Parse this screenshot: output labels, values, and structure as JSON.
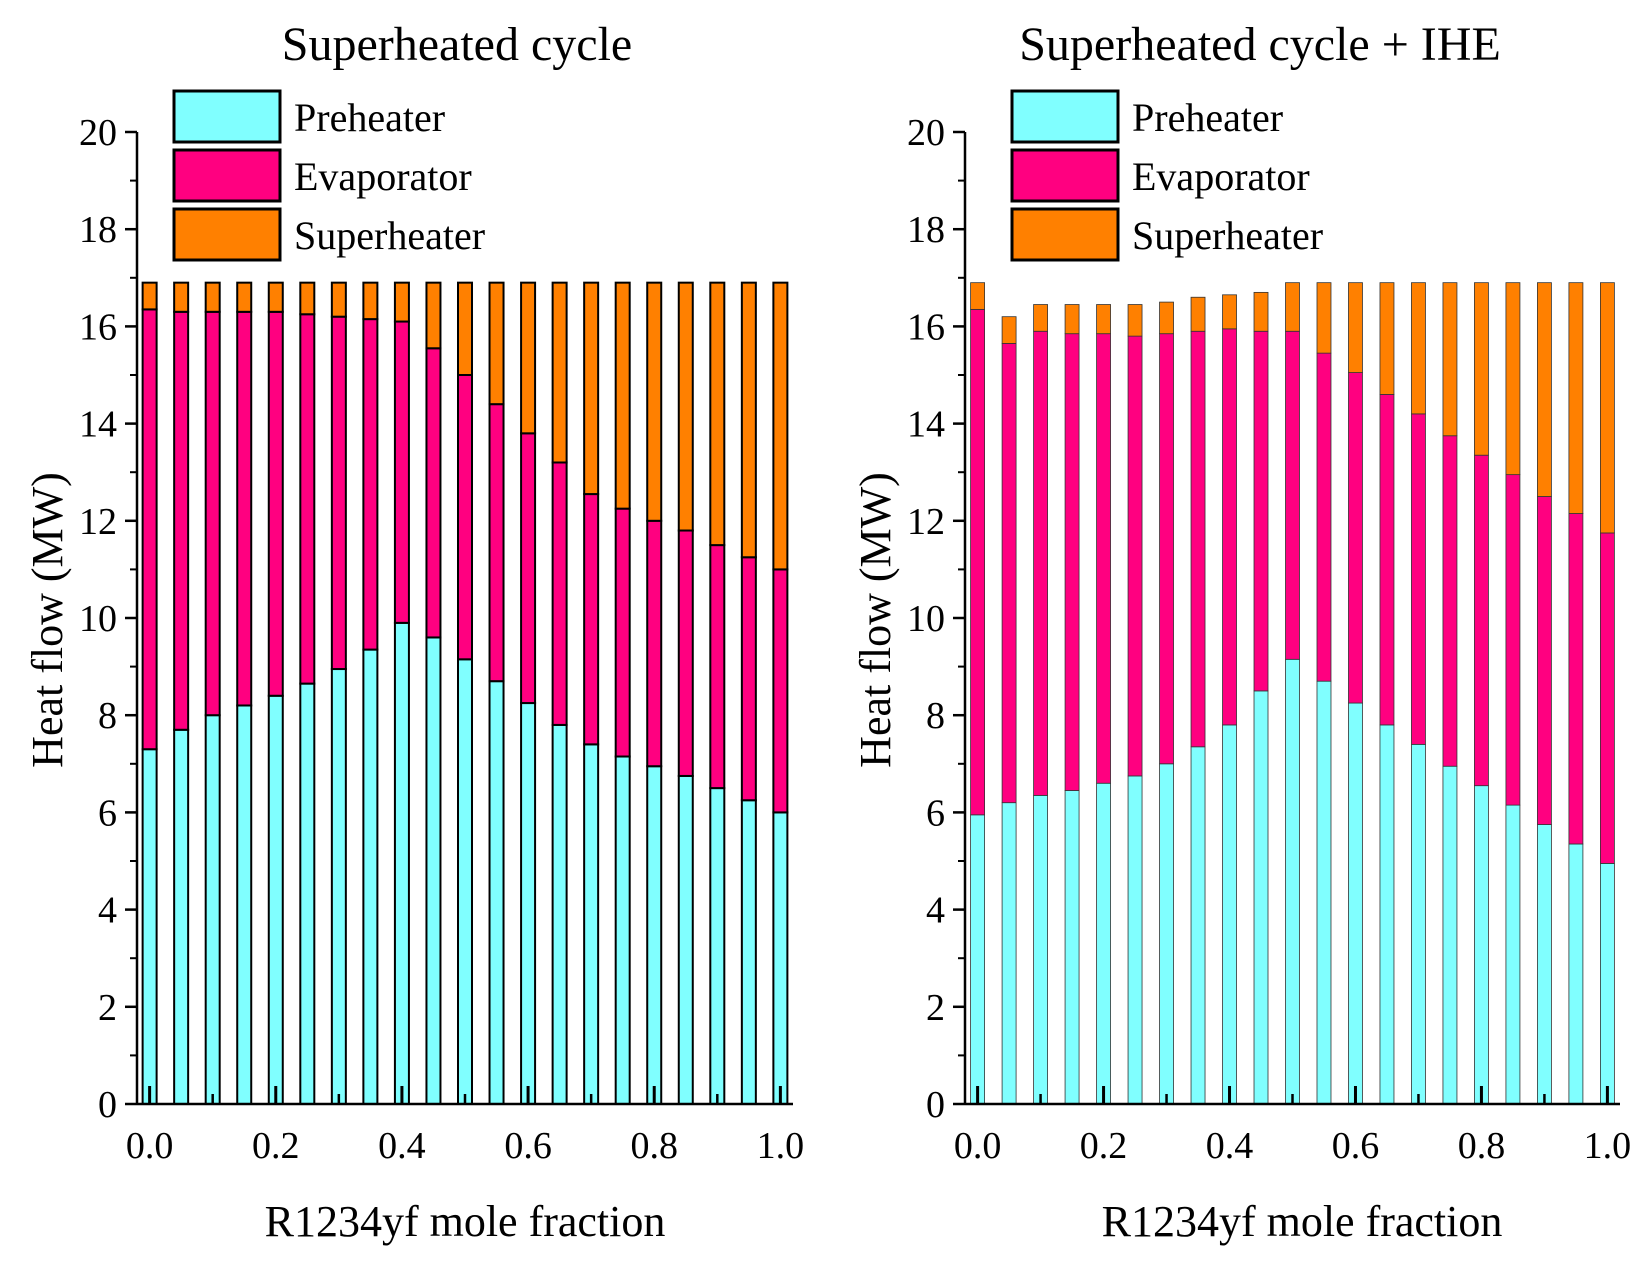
{
  "figure": {
    "description_title": ""
  },
  "chart_data": [
    {
      "type": "bar",
      "stacked": true,
      "title": "Superheated cycle",
      "xlabel": "R1234yf mole fraction",
      "ylabel": "Heat flow (MW)",
      "ylim": [
        0,
        20
      ],
      "xlim": [
        -0.02,
        1.02
      ],
      "xticks": [
        "0.0",
        "0.2",
        "0.4",
        "0.6",
        "0.8",
        "1.0"
      ],
      "yticks": [
        "0",
        "2",
        "4",
        "6",
        "8",
        "10",
        "12",
        "14",
        "16",
        "18",
        "20"
      ],
      "legend_position": "top-left",
      "bar_outline": true,
      "x": [
        0.0,
        0.05,
        0.1,
        0.15,
        0.2,
        0.25,
        0.3,
        0.35,
        0.4,
        0.45,
        0.5,
        0.55,
        0.6,
        0.65,
        0.7,
        0.75,
        0.8,
        0.85,
        0.9,
        0.95,
        1.0
      ],
      "series": [
        {
          "name": "Preheater",
          "color": "#80ffff",
          "values": [
            7.3,
            7.7,
            8.0,
            8.2,
            8.4,
            8.65,
            8.95,
            9.35,
            9.9,
            9.6,
            9.15,
            8.7,
            8.25,
            7.8,
            7.4,
            7.15,
            6.95,
            6.75,
            6.5,
            6.25,
            6.0
          ]
        },
        {
          "name": "Evaporator",
          "color": "#ff0080",
          "values": [
            9.05,
            8.6,
            8.3,
            8.1,
            7.9,
            7.6,
            7.25,
            6.8,
            6.2,
            5.95,
            5.85,
            5.7,
            5.55,
            5.4,
            5.15,
            5.1,
            5.05,
            5.05,
            5.0,
            5.0,
            5.0
          ]
        },
        {
          "name": "Superheater",
          "color": "#ff8000",
          "values": [
            0.55,
            0.6,
            0.6,
            0.6,
            0.6,
            0.65,
            0.7,
            0.75,
            0.8,
            1.35,
            1.9,
            2.5,
            3.1,
            3.7,
            4.35,
            4.65,
            4.9,
            5.1,
            5.4,
            5.65,
            5.9
          ]
        }
      ]
    },
    {
      "type": "bar",
      "stacked": true,
      "title": "Superheated cycle + IHE",
      "xlabel": "R1234yf mole fraction",
      "ylabel": "Heat flow (MW)",
      "ylim": [
        0,
        20
      ],
      "xlim": [
        -0.02,
        1.02
      ],
      "xticks": [
        "0.0",
        "0.2",
        "0.4",
        "0.6",
        "0.8",
        "1.0"
      ],
      "yticks": [
        "0",
        "2",
        "4",
        "6",
        "8",
        "10",
        "12",
        "14",
        "16",
        "18",
        "20"
      ],
      "legend_position": "top-left",
      "bar_outline": false,
      "x": [
        0.0,
        0.05,
        0.1,
        0.15,
        0.2,
        0.25,
        0.3,
        0.35,
        0.4,
        0.45,
        0.5,
        0.55,
        0.6,
        0.65,
        0.7,
        0.75,
        0.8,
        0.85,
        0.9,
        0.95,
        1.0
      ],
      "series": [
        {
          "name": "Preheater",
          "color": "#80ffff",
          "values": [
            5.95,
            6.2,
            6.35,
            6.45,
            6.6,
            6.75,
            7.0,
            7.35,
            7.8,
            8.5,
            9.15,
            8.7,
            8.25,
            7.8,
            7.4,
            6.95,
            6.55,
            6.15,
            5.75,
            5.35,
            4.95
          ]
        },
        {
          "name": "Evaporator",
          "color": "#ff0080",
          "values": [
            10.4,
            9.45,
            9.55,
            9.4,
            9.25,
            9.05,
            8.85,
            8.55,
            8.15,
            7.4,
            6.75,
            6.75,
            6.8,
            6.8,
            6.8,
            6.8,
            6.8,
            6.8,
            6.75,
            6.8,
            6.8
          ]
        },
        {
          "name": "Superheater",
          "color": "#ff8000",
          "values": [
            0.55,
            0.55,
            0.55,
            0.6,
            0.6,
            0.65,
            0.65,
            0.7,
            0.7,
            0.8,
            1.0,
            1.45,
            1.85,
            2.3,
            2.7,
            3.15,
            3.55,
            3.95,
            4.4,
            4.75,
            5.15
          ]
        }
      ]
    }
  ]
}
